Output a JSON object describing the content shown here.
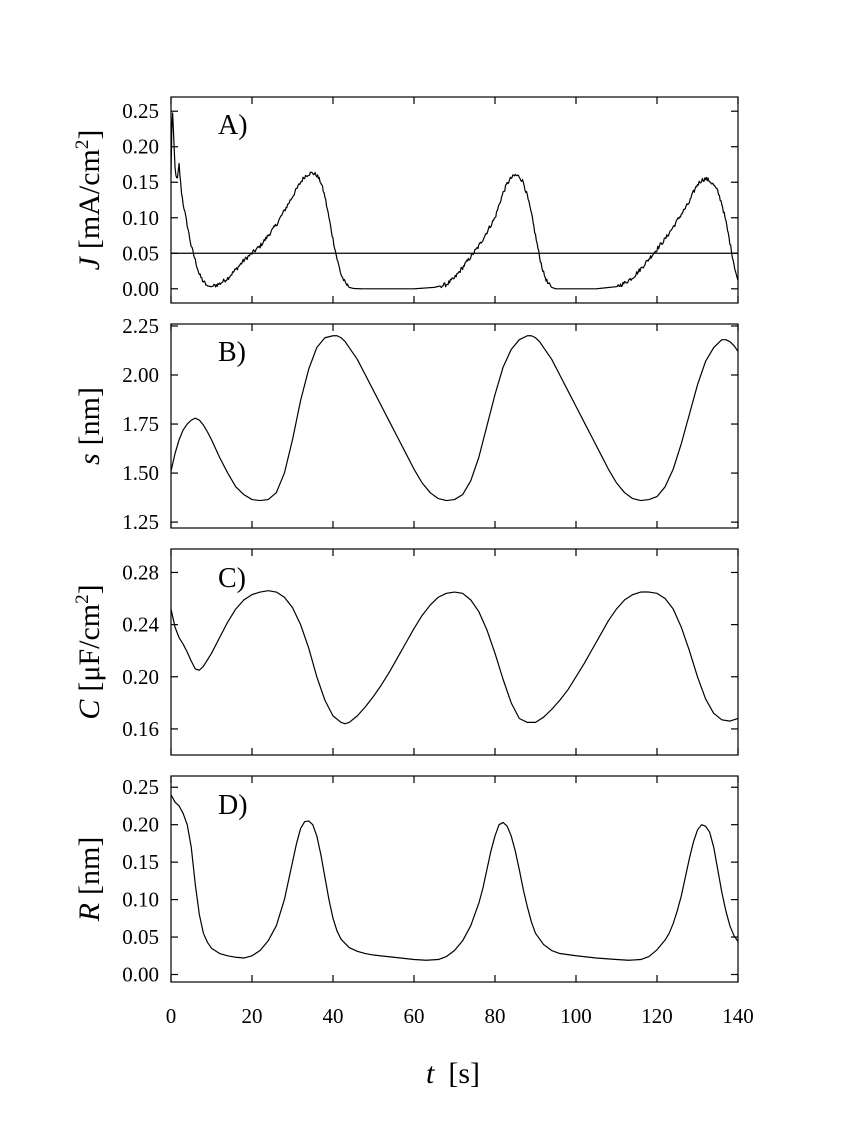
{
  "chart_data": [
    {
      "type": "line",
      "panel_label": "A)",
      "ylabel_var": "J",
      "ylabel_unit": "[mA/cm",
      "ylabel_sup": "2",
      "ylabel_close": "]",
      "xlim": [
        0,
        140
      ],
      "ylim": [
        -0.02,
        0.27
      ],
      "yticks": [
        0.0,
        0.05,
        0.1,
        0.15,
        0.2,
        0.25
      ],
      "ytick_labels": [
        "0.00",
        "0.05",
        "0.10",
        "0.15",
        "0.20",
        "0.25"
      ],
      "reference_line_y": 0.05,
      "noisy": true,
      "series": [
        {
          "x": [
            0,
            0.3,
            0.6,
            1,
            1.5,
            2,
            2.5,
            3,
            4,
            5,
            6,
            7,
            8,
            9,
            10,
            12,
            14,
            16,
            18,
            20,
            22,
            24,
            26,
            28,
            30,
            32,
            33,
            34,
            35,
            36,
            37,
            38,
            39,
            40,
            41,
            42,
            43,
            44,
            45,
            46,
            47,
            50,
            55,
            60,
            65,
            68,
            70,
            72,
            74,
            76,
            78,
            80,
            81,
            82,
            83,
            84,
            85,
            86,
            87,
            88,
            89,
            90,
            91,
            92,
            93,
            94,
            95,
            100,
            105,
            110,
            112,
            114,
            116,
            118,
            120,
            122,
            124,
            126,
            128,
            129,
            130,
            131,
            132,
            133,
            134,
            135,
            136,
            137,
            138,
            139,
            140
          ],
          "y": [
            0.16,
            0.26,
            0.22,
            0.17,
            0.15,
            0.175,
            0.14,
            0.12,
            0.09,
            0.06,
            0.04,
            0.02,
            0.01,
            0.004,
            0.003,
            0.007,
            0.015,
            0.027,
            0.04,
            0.05,
            0.06,
            0.075,
            0.09,
            0.11,
            0.13,
            0.15,
            0.158,
            0.162,
            0.163,
            0.16,
            0.15,
            0.13,
            0.1,
            0.07,
            0.042,
            0.02,
            0.008,
            0.002,
            0.0005,
            0.0002,
            0.0,
            0.0,
            0.0,
            0.0,
            0.002,
            0.006,
            0.015,
            0.03,
            0.045,
            0.06,
            0.08,
            0.1,
            0.118,
            0.135,
            0.148,
            0.156,
            0.16,
            0.158,
            0.15,
            0.13,
            0.105,
            0.075,
            0.045,
            0.022,
            0.008,
            0.002,
            0.0,
            0.0,
            0.0,
            0.003,
            0.008,
            0.016,
            0.028,
            0.042,
            0.056,
            0.07,
            0.087,
            0.105,
            0.122,
            0.136,
            0.147,
            0.153,
            0.155,
            0.152,
            0.146,
            0.137,
            0.12,
            0.095,
            0.065,
            0.035,
            0.01
          ]
        }
      ]
    },
    {
      "type": "line",
      "panel_label": "B)",
      "ylabel_var": "s",
      "ylabel_unit": "[nm]",
      "xlim": [
        0,
        140
      ],
      "ylim": [
        1.22,
        2.26
      ],
      "yticks": [
        1.25,
        1.5,
        1.75,
        2.0,
        2.25
      ],
      "ytick_labels": [
        "1.25",
        "1.50",
        "1.75",
        "2.00",
        "2.25"
      ],
      "series": [
        {
          "x": [
            0,
            1,
            2,
            3,
            4,
            5,
            6,
            7,
            8,
            9,
            10,
            12,
            14,
            16,
            18,
            20,
            22,
            24,
            26,
            28,
            30,
            32,
            34,
            36,
            38,
            40,
            41,
            42,
            43,
            44,
            46,
            48,
            50,
            52,
            54,
            56,
            58,
            60,
            62,
            64,
            66,
            68,
            70,
            72,
            74,
            76,
            78,
            80,
            82,
            84,
            86,
            88,
            89,
            90,
            91,
            92,
            94,
            96,
            98,
            100,
            102,
            104,
            106,
            108,
            110,
            112,
            114,
            116,
            118,
            120,
            122,
            124,
            126,
            128,
            130,
            132,
            134,
            136,
            137,
            138,
            139,
            140
          ],
          "y": [
            1.51,
            1.6,
            1.67,
            1.72,
            1.75,
            1.77,
            1.78,
            1.77,
            1.745,
            1.71,
            1.67,
            1.58,
            1.5,
            1.43,
            1.39,
            1.365,
            1.36,
            1.365,
            1.4,
            1.5,
            1.67,
            1.87,
            2.03,
            2.14,
            2.19,
            2.2,
            2.2,
            2.19,
            2.17,
            2.14,
            2.08,
            2.0,
            1.92,
            1.84,
            1.76,
            1.68,
            1.6,
            1.52,
            1.45,
            1.4,
            1.37,
            1.36,
            1.365,
            1.39,
            1.46,
            1.58,
            1.74,
            1.9,
            2.04,
            2.13,
            2.18,
            2.2,
            2.2,
            2.19,
            2.17,
            2.14,
            2.08,
            2.0,
            1.92,
            1.84,
            1.76,
            1.68,
            1.6,
            1.52,
            1.45,
            1.4,
            1.37,
            1.36,
            1.365,
            1.38,
            1.43,
            1.52,
            1.65,
            1.8,
            1.95,
            2.07,
            2.14,
            2.18,
            2.18,
            2.17,
            2.15,
            2.12
          ]
        }
      ]
    },
    {
      "type": "line",
      "panel_label": "C)",
      "ylabel_var": "C",
      "ylabel_unit": "[μF/cm",
      "ylabel_sup": "2",
      "ylabel_close": "]",
      "xlim": [
        0,
        140
      ],
      "ylim": [
        0.14,
        0.298
      ],
      "yticks": [
        0.16,
        0.2,
        0.24,
        0.28
      ],
      "ytick_labels": [
        "0.16",
        "0.20",
        "0.24",
        "0.28"
      ],
      "series": [
        {
          "x": [
            0,
            0.5,
            1,
            2,
            3,
            4,
            5,
            6,
            7,
            8,
            10,
            12,
            14,
            16,
            18,
            20,
            22,
            24,
            26,
            28,
            30,
            32,
            34,
            36,
            38,
            40,
            42,
            43,
            44,
            46,
            48,
            50,
            52,
            54,
            56,
            58,
            60,
            62,
            64,
            66,
            68,
            70,
            72,
            74,
            76,
            78,
            80,
            82,
            84,
            86,
            88,
            90,
            91,
            92,
            94,
            96,
            98,
            100,
            102,
            104,
            106,
            108,
            110,
            112,
            114,
            116,
            118,
            120,
            122,
            124,
            126,
            128,
            130,
            132,
            134,
            136,
            138,
            140
          ],
          "y": [
            0.252,
            0.245,
            0.238,
            0.23,
            0.225,
            0.219,
            0.212,
            0.206,
            0.205,
            0.208,
            0.218,
            0.23,
            0.242,
            0.252,
            0.259,
            0.263,
            0.265,
            0.266,
            0.265,
            0.261,
            0.253,
            0.24,
            0.222,
            0.2,
            0.182,
            0.17,
            0.165,
            0.164,
            0.165,
            0.17,
            0.177,
            0.185,
            0.194,
            0.204,
            0.215,
            0.226,
            0.237,
            0.247,
            0.255,
            0.261,
            0.264,
            0.265,
            0.264,
            0.259,
            0.25,
            0.236,
            0.218,
            0.198,
            0.18,
            0.168,
            0.165,
            0.165,
            0.167,
            0.169,
            0.175,
            0.182,
            0.19,
            0.2,
            0.21,
            0.221,
            0.232,
            0.243,
            0.252,
            0.259,
            0.263,
            0.265,
            0.265,
            0.264,
            0.26,
            0.252,
            0.238,
            0.22,
            0.2,
            0.183,
            0.172,
            0.167,
            0.166,
            0.168
          ]
        }
      ]
    },
    {
      "type": "line",
      "panel_label": "D)",
      "ylabel_var": "R",
      "ylabel_unit": "[nm]",
      "xlim": [
        0,
        140
      ],
      "ylim": [
        -0.01,
        0.265
      ],
      "yticks": [
        0.0,
        0.05,
        0.1,
        0.15,
        0.2,
        0.25
      ],
      "ytick_labels": [
        "0.00",
        "0.05",
        "0.10",
        "0.15",
        "0.20",
        "0.25"
      ],
      "series": [
        {
          "x": [
            0,
            0.5,
            1,
            2,
            3,
            4,
            5,
            6,
            7,
            8,
            9,
            10,
            12,
            14,
            16,
            18,
            20,
            22,
            24,
            26,
            28,
            29,
            30,
            31,
            32,
            33,
            34,
            35,
            36,
            37,
            38,
            39,
            40,
            41,
            42,
            44,
            46,
            48,
            50,
            55,
            60,
            63,
            66,
            68,
            70,
            72,
            74,
            76,
            77,
            78,
            79,
            80,
            81,
            82,
            83,
            84,
            85,
            86,
            87,
            88,
            89,
            90,
            92,
            94,
            96,
            100,
            105,
            110,
            113,
            116,
            118,
            120,
            122,
            123,
            124,
            125,
            126,
            127,
            128,
            129,
            130,
            131,
            132,
            133,
            134,
            135,
            136,
            137,
            138,
            139,
            140
          ],
          "y": [
            0.24,
            0.235,
            0.23,
            0.225,
            0.215,
            0.2,
            0.17,
            0.12,
            0.08,
            0.055,
            0.043,
            0.035,
            0.028,
            0.025,
            0.023,
            0.022,
            0.025,
            0.032,
            0.045,
            0.065,
            0.1,
            0.125,
            0.15,
            0.175,
            0.195,
            0.204,
            0.205,
            0.2,
            0.185,
            0.16,
            0.13,
            0.1,
            0.075,
            0.058,
            0.047,
            0.036,
            0.031,
            0.028,
            0.026,
            0.023,
            0.02,
            0.019,
            0.02,
            0.024,
            0.032,
            0.045,
            0.065,
            0.095,
            0.115,
            0.14,
            0.165,
            0.185,
            0.2,
            0.203,
            0.198,
            0.185,
            0.165,
            0.14,
            0.113,
            0.09,
            0.07,
            0.055,
            0.04,
            0.032,
            0.028,
            0.025,
            0.022,
            0.02,
            0.019,
            0.02,
            0.024,
            0.033,
            0.046,
            0.055,
            0.068,
            0.085,
            0.105,
            0.13,
            0.155,
            0.177,
            0.193,
            0.2,
            0.198,
            0.19,
            0.17,
            0.14,
            0.11,
            0.085,
            0.065,
            0.052,
            0.044
          ]
        }
      ]
    }
  ],
  "x_axis": {
    "ticks": [
      0,
      20,
      40,
      60,
      80,
      100,
      120,
      140
    ],
    "tick_labels": [
      "0",
      "20",
      "40",
      "60",
      "80",
      "100",
      "120",
      "140"
    ],
    "label_var": "t",
    "label_unit": "[s]"
  }
}
